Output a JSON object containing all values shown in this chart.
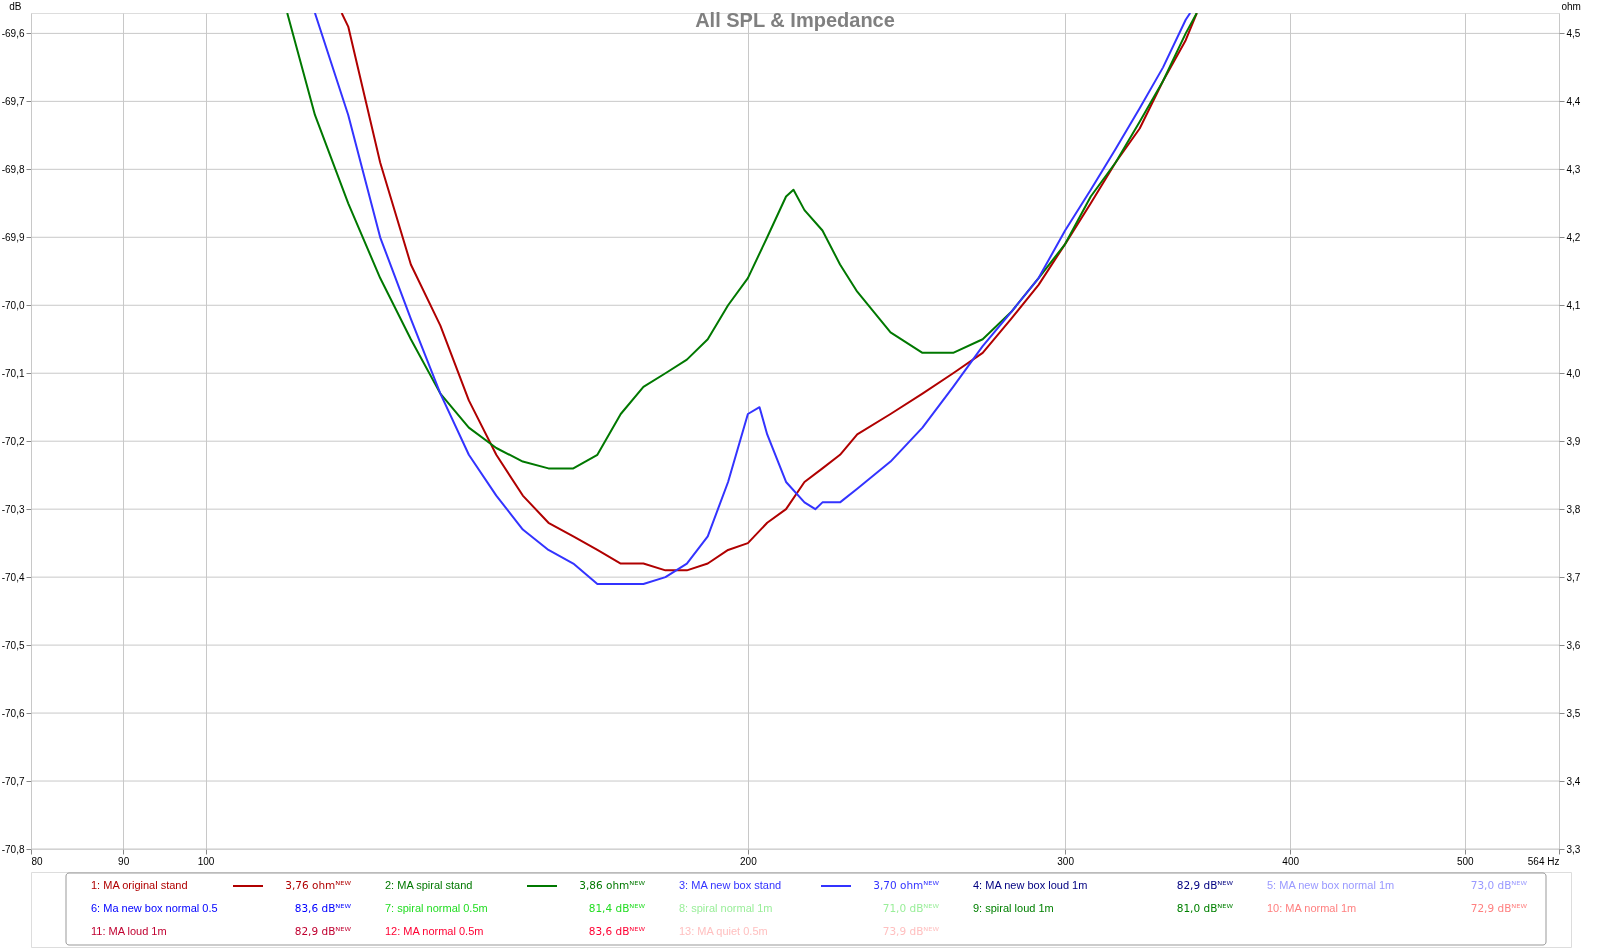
{
  "chart_data": {
    "type": "line",
    "title": "All SPL & Impedance",
    "ylabel": "dB",
    "y2label": "ohm",
    "log": "x",
    "grid": true,
    "legend": "bottom",
    "xlim": [
      80,
      564
    ],
    "xticks": [
      80,
      90,
      100,
      200,
      300,
      400,
      500,
      {
        "value": 564,
        "label": "564 Hz"
      }
    ],
    "ylim": [
      -70.8,
      -69.57
    ],
    "yticks": [
      {
        "value": -69.6,
        "label": "-69,6"
      },
      {
        "value": -69.7,
        "label": "-69,7"
      },
      {
        "value": -69.8,
        "label": "-69,8"
      },
      {
        "value": -69.9,
        "label": "-69,9"
      },
      {
        "value": -70.0,
        "label": "-70,0"
      },
      {
        "value": -70.1,
        "label": "-70,1"
      },
      {
        "value": -70.2,
        "label": "-70,2"
      },
      {
        "value": -70.3,
        "label": "-70,3"
      },
      {
        "value": -70.4,
        "label": "-70,4"
      },
      {
        "value": -70.5,
        "label": "-70,5"
      },
      {
        "value": -70.6,
        "label": "-70,6"
      },
      {
        "value": -70.7,
        "label": "-70,7"
      },
      {
        "value": -70.8,
        "label": "-70,8"
      }
    ],
    "y2lim": [
      3.3,
      4.53
    ],
    "y2ticks": [
      {
        "value": 3.3,
        "label": "3,3"
      },
      {
        "value": 3.4,
        "label": "3,4"
      },
      {
        "value": 3.5,
        "label": "3,5"
      },
      {
        "value": 3.6,
        "label": "3,6"
      },
      {
        "value": 3.7,
        "label": "3,7"
      },
      {
        "value": 3.8,
        "label": "3,8"
      },
      {
        "value": 3.9,
        "label": "3,9"
      },
      {
        "value": 4.0,
        "label": "4,0"
      },
      {
        "value": 4.1,
        "label": "4,1"
      },
      {
        "value": 4.2,
        "label": "4,2"
      },
      {
        "value": 4.3,
        "label": "4,3"
      },
      {
        "value": 4.4,
        "label": "4,4"
      },
      {
        "value": 4.5,
        "label": "4,5"
      }
    ],
    "series": [
      {
        "name": "1: MA original stand",
        "color": "#b00000",
        "axis": "y2",
        "x": [
          119,
          120,
          125,
          130,
          135,
          140,
          145,
          150,
          155,
          160,
          165,
          170,
          175,
          180,
          185,
          190,
          195,
          200,
          205,
          210,
          215,
          220,
          225,
          230,
          240,
          250,
          260,
          270,
          280,
          290,
          300,
          310,
          320,
          330,
          340,
          350,
          355
        ],
        "values": [
          4.53,
          4.51,
          4.31,
          4.16,
          4.07,
          3.96,
          3.88,
          3.82,
          3.78,
          3.76,
          3.74,
          3.72,
          3.72,
          3.71,
          3.71,
          3.72,
          3.74,
          3.75,
          3.78,
          3.8,
          3.84,
          3.86,
          3.88,
          3.91,
          3.94,
          3.97,
          4.0,
          4.03,
          4.08,
          4.13,
          4.19,
          4.25,
          4.31,
          4.36,
          4.43,
          4.49,
          4.53
        ]
      },
      {
        "name": "2: MA spiral stand",
        "color": "#007800",
        "axis": "y2",
        "x": [
          111,
          115,
          120,
          125,
          130,
          135,
          140,
          145,
          150,
          155,
          160,
          165,
          170,
          175,
          180,
          185,
          190,
          195,
          200,
          205,
          210,
          212,
          215,
          220,
          225,
          230,
          240,
          250,
          260,
          270,
          280,
          290,
          300,
          310,
          320,
          330,
          340,
          350,
          355
        ],
        "values": [
          4.53,
          4.38,
          4.25,
          4.14,
          4.05,
          3.97,
          3.92,
          3.89,
          3.87,
          3.86,
          3.86,
          3.88,
          3.94,
          3.98,
          4.0,
          4.02,
          4.05,
          4.1,
          4.14,
          4.2,
          4.26,
          4.27,
          4.24,
          4.21,
          4.16,
          4.12,
          4.06,
          4.03,
          4.03,
          4.05,
          4.09,
          4.14,
          4.19,
          4.26,
          4.31,
          4.37,
          4.43,
          4.5,
          4.53
        ]
      },
      {
        "name": "3: MA new box stand",
        "color": "#3333ff",
        "axis": "y2",
        "x": [
          115,
          120,
          125,
          130,
          135,
          140,
          145,
          150,
          155,
          160,
          165,
          170,
          175,
          180,
          185,
          190,
          195,
          200,
          203,
          205,
          210,
          215,
          218,
          220,
          225,
          230,
          240,
          250,
          260,
          270,
          280,
          290,
          300,
          310,
          320,
          330,
          340,
          350,
          352
        ],
        "values": [
          4.53,
          4.38,
          4.2,
          4.08,
          3.97,
          3.88,
          3.82,
          3.77,
          3.74,
          3.72,
          3.69,
          3.69,
          3.69,
          3.7,
          3.72,
          3.76,
          3.84,
          3.94,
          3.95,
          3.91,
          3.84,
          3.81,
          3.8,
          3.81,
          3.81,
          3.83,
          3.87,
          3.92,
          3.98,
          4.04,
          4.09,
          4.14,
          4.21,
          4.27,
          4.33,
          4.39,
          4.45,
          4.52,
          4.53
        ]
      },
      {
        "name": "4: MA new box loud 1m",
        "color": "#000080"
      },
      {
        "name": "5: MA new box normal 1m",
        "color": "#9999ff"
      },
      {
        "name": "6: Ma new box normal 0.5",
        "color": "#0000ff"
      },
      {
        "name": "7: spiral normal 0.5m",
        "color": "#22dd22"
      },
      {
        "name": "8: spiral normal 1m",
        "color": "#99ee99"
      },
      {
        "name": "9: spiral loud 1m",
        "color": "#008000"
      },
      {
        "name": "10: MA normal 1m",
        "color": "#ff8080"
      },
      {
        "name": "11: MA loud 1m",
        "color": "#c00030"
      },
      {
        "name": "12: MA normal 0.5m",
        "color": "#ff0033"
      },
      {
        "name": "13: MA quiet 0.5m",
        "color": "#ffc0c0"
      }
    ],
    "annotations": [
      "3,76 ohmᴺᴱᵂ",
      "3,86 ohmᴺᴱᵂ",
      "3,70 ohmᴺᴱᵂ",
      "82,9 dBᴺᴱᵂ",
      "73,0 dBᴺᴱᵂ",
      "83,6 dBᴺᴱᵂ",
      "81,4 dBᴺᴱᵂ",
      "71,0 dBᴺᴱᵂ",
      "81,0 dBᴺᴱᵂ",
      "72,9 dBᴺᴱᵂ",
      "82,9 dBᴺᴱᵂ",
      "83,6 dBᴺᴱᵂ",
      "73,9 dBᴺᴱᵂ"
    ]
  }
}
